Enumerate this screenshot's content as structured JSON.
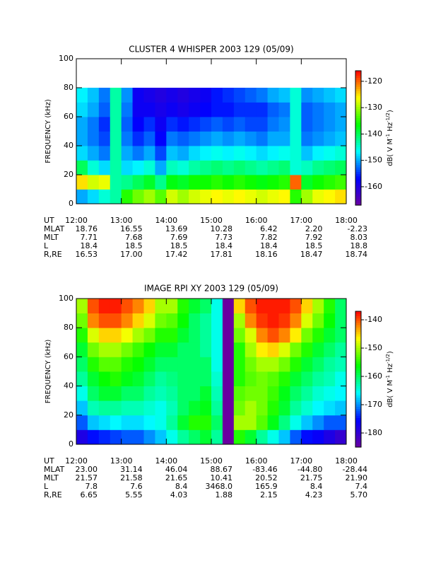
{
  "chart_data": [
    {
      "type": "heatmap",
      "title": "CLUSTER 4 WHISPER 2003 129 (05/09)",
      "ylabel": "FREQUENCY (kHz)",
      "colormap": "rainbow",
      "xlim": [
        12,
        18
      ],
      "xticks": [
        {
          "value": 12,
          "label": "12:00"
        },
        {
          "value": 13,
          "label": "13:00"
        },
        {
          "value": 14,
          "label": "14:00"
        },
        {
          "value": 15,
          "label": "15:00"
        },
        {
          "value": 16,
          "label": "16:00"
        },
        {
          "value": 17,
          "label": "17:00"
        },
        {
          "value": 18,
          "label": "18:00"
        }
      ],
      "ylim": [
        0,
        100
      ],
      "yticks": [
        0,
        20,
        40,
        60,
        80,
        100
      ],
      "xbins": [
        12,
        12.25,
        12.5,
        12.75,
        13,
        13.25,
        13.5,
        13.75,
        14,
        14.25,
        14.5,
        14.75,
        15,
        15.25,
        15.5,
        15.75,
        16,
        16.25,
        16.5,
        16.75,
        17,
        17.25,
        17.5,
        17.75,
        18
      ],
      "ybins": [
        0,
        10,
        20,
        30,
        40,
        50,
        60,
        70,
        80
      ],
      "z": [
        [
          -150,
          -148,
          -145,
          -143,
          -135,
          -132,
          -130,
          -133,
          -128,
          -130,
          -128,
          -127,
          -126,
          -127,
          -126,
          -127,
          -128,
          -127,
          -126,
          -135,
          -130,
          -127,
          -126,
          -125
        ],
        [
          -125,
          -128,
          -127,
          -143,
          -142,
          -140,
          -138,
          -142,
          -137,
          -138,
          -136,
          -136,
          -135,
          -136,
          -135,
          -136,
          -137,
          -136,
          -135,
          -120,
          -138,
          -136,
          -135,
          -134
        ],
        [
          -140,
          -145,
          -148,
          -143,
          -148,
          -147,
          -145,
          -150,
          -144,
          -145,
          -143,
          -142,
          -141,
          -142,
          -141,
          -142,
          -143,
          -142,
          -141,
          -145,
          -144,
          -142,
          -141,
          -140
        ],
        [
          -148,
          -150,
          -152,
          -143,
          -150,
          -152,
          -150,
          -154,
          -149,
          -150,
          -148,
          -147,
          -146,
          -147,
          -146,
          -147,
          -148,
          -147,
          -146,
          -145,
          -149,
          -147,
          -146,
          -145
        ],
        [
          -150,
          -152,
          -154,
          -143,
          -152,
          -155,
          -153,
          -157,
          -152,
          -153,
          -152,
          -151,
          -150,
          -151,
          -150,
          -151,
          -152,
          -150,
          -150,
          -145,
          -152,
          -151,
          -150,
          -149
        ],
        [
          -150,
          -152,
          -155,
          -143,
          -153,
          -157,
          -155,
          -158,
          -155,
          -156,
          -155,
          -154,
          -153,
          -154,
          -153,
          -154,
          -154,
          -152,
          -151,
          -145,
          -153,
          -152,
          -151,
          -150
        ],
        [
          -148,
          -150,
          -153,
          -143,
          -152,
          -158,
          -158,
          -159,
          -158,
          -159,
          -158,
          -157,
          -156,
          -156,
          -155,
          -155,
          -155,
          -153,
          -152,
          -145,
          -153,
          -152,
          -151,
          -150
        ],
        [
          -147,
          -149,
          -152,
          -143,
          -151,
          -158,
          -159,
          -160,
          -159,
          -160,
          -159,
          -158,
          -156,
          -155,
          -154,
          -153,
          -152,
          -150,
          -149,
          -145,
          -151,
          -150,
          -149,
          -148
        ]
      ],
      "clim": [
        -167,
        -116
      ],
      "cticks": [
        -120,
        -130,
        -140,
        -150,
        -160
      ],
      "colorbar_label": [
        "dB( V M",
        "-1",
        " Hz",
        "-1/2",
        ")"
      ],
      "ephemeris": {
        "ut_label": "UT",
        "rows": [
          {
            "label": "MLAT",
            "values": [
              "18.76",
              "16.55",
              "13.69",
              "10.28",
              "6.42",
              "2.20",
              "-2.23"
            ]
          },
          {
            "label": "MLT",
            "values": [
              "7.71",
              "7.68",
              "7.69",
              "7.73",
              "7.82",
              "7.92",
              "8.03"
            ]
          },
          {
            "label": "L",
            "values": [
              "18.4",
              "18.5",
              "18.5",
              "18.4",
              "18.4",
              "18.5",
              "18.8"
            ]
          },
          {
            "label": "R,RE",
            "values": [
              "16.53",
              "17.00",
              "17.42",
              "17.81",
              "18.16",
              "18.47",
              "18.74"
            ]
          }
        ]
      }
    },
    {
      "type": "heatmap",
      "title": "IMAGE RPI XY 2003 129 (05/09)",
      "ylabel": "FREQUENCY (kHz)",
      "colormap": "rainbow",
      "xlim": [
        12,
        18
      ],
      "xticks": [
        {
          "value": 12,
          "label": "12:00"
        },
        {
          "value": 13,
          "label": "13:00"
        },
        {
          "value": 14,
          "label": "14:00"
        },
        {
          "value": 15,
          "label": "15:00"
        },
        {
          "value": 16,
          "label": "16:00"
        },
        {
          "value": 17,
          "label": "17:00"
        },
        {
          "value": 18,
          "label": "18:00"
        }
      ],
      "ylim": [
        0,
        100
      ],
      "yticks": [
        0,
        20,
        40,
        60,
        80,
        100
      ],
      "xbins": [
        12,
        12.25,
        12.5,
        12.75,
        13,
        13.25,
        13.5,
        13.75,
        14,
        14.25,
        14.5,
        14.75,
        15,
        15.25,
        15.5,
        15.75,
        16,
        16.25,
        16.5,
        16.75,
        17,
        17.25,
        17.5,
        17.75,
        18
      ],
      "ybins": [
        0,
        10,
        20,
        30,
        40,
        50,
        60,
        70,
        80,
        90,
        100
      ],
      "z": [
        [
          -178,
          -175,
          -174,
          -173,
          -172,
          -172,
          -170,
          -168,
          -165,
          -162,
          -160,
          -158,
          -162,
          -185,
          -155,
          -158,
          -162,
          -165,
          -168,
          -172,
          -175,
          -176,
          -178,
          -180
        ],
        [
          -172,
          -168,
          -167,
          -166,
          -167,
          -167,
          -166,
          -165,
          -162,
          -158,
          -155,
          -155,
          -160,
          -185,
          -150,
          -150,
          -153,
          -157,
          -161,
          -165,
          -168,
          -170,
          -172,
          -172
        ],
        [
          -168,
          -163,
          -162,
          -162,
          -163,
          -163,
          -164,
          -165,
          -163,
          -160,
          -158,
          -157,
          -162,
          -185,
          -152,
          -150,
          -152,
          -155,
          -158,
          -162,
          -164,
          -166,
          -167,
          -168
        ],
        [
          -165,
          -160,
          -158,
          -158,
          -160,
          -160,
          -162,
          -163,
          -162,
          -160,
          -160,
          -158,
          -163,
          -185,
          -153,
          -152,
          -152,
          -154,
          -157,
          -160,
          -162,
          -164,
          -165,
          -166
        ],
        [
          -162,
          -158,
          -156,
          -155,
          -157,
          -158,
          -160,
          -162,
          -161,
          -160,
          -160,
          -160,
          -164,
          -185,
          -155,
          -153,
          -152,
          -153,
          -155,
          -158,
          -160,
          -162,
          -163,
          -165
        ],
        [
          -160,
          -155,
          -153,
          -153,
          -155,
          -156,
          -158,
          -160,
          -160,
          -160,
          -160,
          -160,
          -165,
          -185,
          -155,
          -152,
          -150,
          -150,
          -152,
          -155,
          -158,
          -160,
          -162,
          -163
        ],
        [
          -158,
          -152,
          -150,
          -150,
          -152,
          -154,
          -156,
          -158,
          -158,
          -160,
          -160,
          -162,
          -165,
          -185,
          -155,
          -150,
          -146,
          -145,
          -148,
          -152,
          -155,
          -158,
          -160,
          -162
        ],
        [
          -155,
          -148,
          -145,
          -145,
          -147,
          -150,
          -152,
          -155,
          -155,
          -158,
          -160,
          -162,
          -165,
          -185,
          -152,
          -148,
          -142,
          -140,
          -142,
          -146,
          -152,
          -155,
          -158,
          -160
        ],
        [
          -152,
          -142,
          -140,
          -140,
          -142,
          -145,
          -148,
          -152,
          -153,
          -156,
          -160,
          -162,
          -165,
          -185,
          -150,
          -142,
          -139,
          -138,
          -139,
          -142,
          -148,
          -152,
          -156,
          -160
        ],
        [
          -150,
          -140,
          -138,
          -138,
          -140,
          -142,
          -145,
          -150,
          -150,
          -155,
          -158,
          -160,
          -165,
          -185,
          -145,
          -140,
          -138,
          -138,
          -138,
          -140,
          -145,
          -150,
          -155,
          -160
        ]
      ],
      "clim": [
        -185,
        -137
      ],
      "cticks": [
        -140,
        -150,
        -160,
        -170,
        -180
      ],
      "colorbar_label": [
        "dB( V M",
        "-1",
        " Hz",
        "-1/2",
        ")"
      ],
      "ephemeris": {
        "ut_label": "UT",
        "rows": [
          {
            "label": "MLAT",
            "values": [
              "23.00",
              "31.14",
              "46.04",
              "88.67",
              "-83.46",
              "-44.80",
              "-28.44"
            ]
          },
          {
            "label": "MLT",
            "values": [
              "21.57",
              "21.58",
              "21.65",
              "10.41",
              "20.52",
              "21.75",
              "21.90"
            ]
          },
          {
            "label": "L",
            "values": [
              "7.8",
              "7.6",
              "8.4",
              "3468.0",
              "165.9",
              "8.4",
              "7.4"
            ]
          },
          {
            "label": "R,RE",
            "values": [
              "6.65",
              "5.55",
              "4.03",
              "1.88",
              "2.15",
              "4.23",
              "5.70"
            ]
          }
        ]
      }
    }
  ]
}
